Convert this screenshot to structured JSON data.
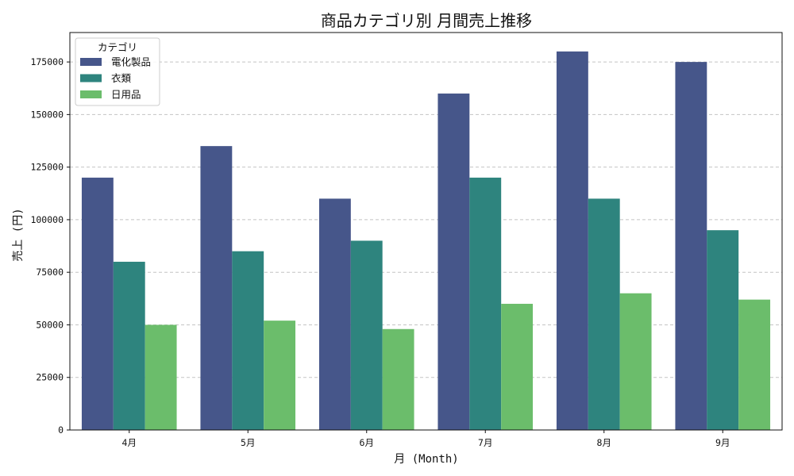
{
  "chart_data": {
    "type": "bar",
    "title": "商品カテゴリ別 月間売上推移",
    "xlabel": "月 (Month)",
    "ylabel": "売上 (円)",
    "categories": [
      "4月",
      "5月",
      "6月",
      "7月",
      "8月",
      "9月"
    ],
    "ylim": [
      0,
      189000
    ],
    "yticks": [
      0,
      25000,
      50000,
      75000,
      100000,
      125000,
      150000,
      175000
    ],
    "grid": "y-dashed",
    "legend": {
      "title": "カテゴリ",
      "placement": "top-left"
    },
    "series": [
      {
        "name": "電化製品",
        "color": "#46568a",
        "values": [
          120000,
          135000,
          110000,
          160000,
          180000,
          175000
        ]
      },
      {
        "name": "衣類",
        "color": "#2e847e",
        "values": [
          80000,
          85000,
          90000,
          120000,
          110000,
          95000
        ]
      },
      {
        "name": "日用品",
        "color": "#6bbd6b",
        "values": [
          50000,
          52000,
          48000,
          60000,
          65000,
          62000
        ]
      }
    ]
  }
}
